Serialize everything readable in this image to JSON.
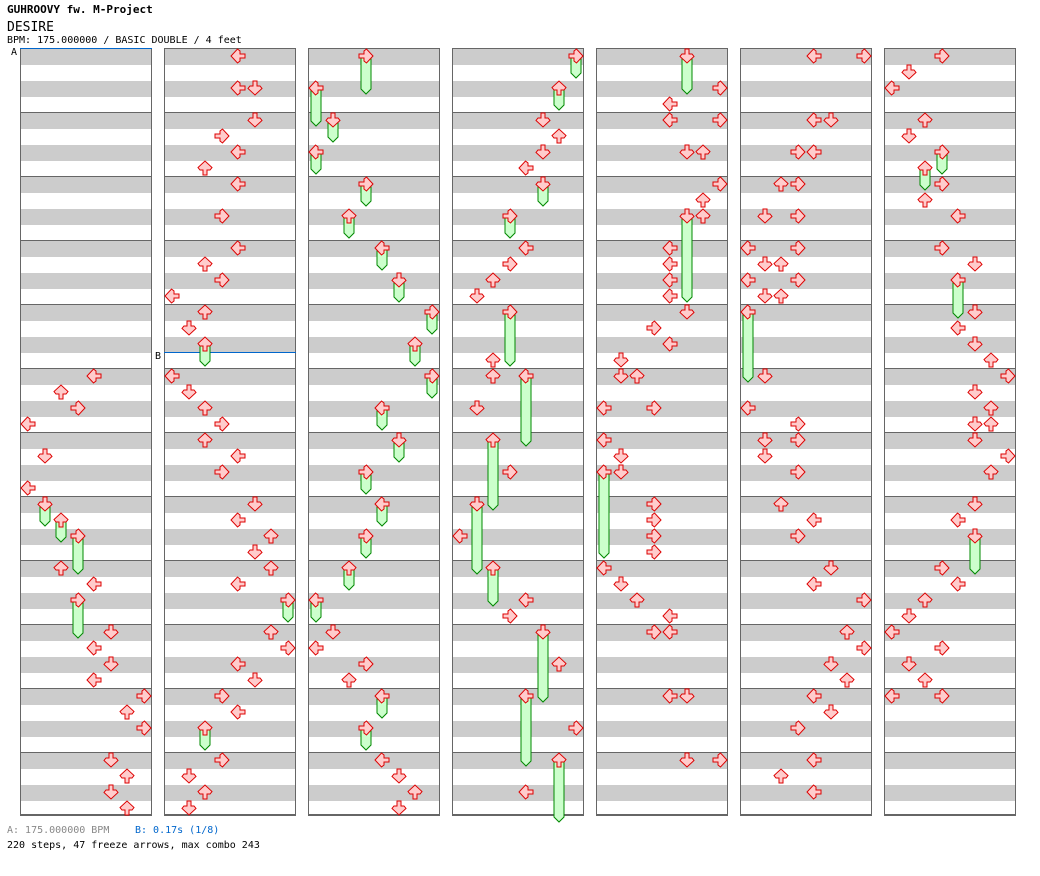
{
  "header": {
    "artist": "GUHROOVY fw. M-Project",
    "title": "DESIRE",
    "info": "BPM: 175.000000 / BASIC DOUBLE / 4 feet"
  },
  "footer": {
    "bpm_legend": "A: 175.000000 BPM",
    "stop_legend": "B: 0.17s (1/8)",
    "summary": "220 steps, 47 freeze arrows, max combo 243"
  },
  "chart": {
    "columns": 7,
    "measures_per_column": 12,
    "beats_per_measure": 4,
    "lane_directions": [
      "left",
      "down",
      "up",
      "right",
      "left",
      "down",
      "up",
      "right"
    ],
    "markers": [
      {
        "label": "A",
        "measure": 0,
        "beat": 0
      },
      {
        "label": "B",
        "measure": 16,
        "beat": 3
      }
    ],
    "notes": [
      [
        5,
        0,
        4
      ],
      [
        5,
        1,
        2
      ],
      [
        5,
        2,
        3
      ],
      [
        5,
        3,
        0
      ],
      [
        6,
        1,
        1
      ],
      [
        6,
        3,
        0
      ],
      [
        8,
        0,
        2
      ],
      [
        8,
        1,
        4
      ],
      [
        9,
        0,
        5
      ],
      [
        9,
        1,
        4
      ],
      [
        9,
        2,
        5
      ],
      [
        9,
        3,
        4
      ],
      [
        10,
        0,
        7
      ],
      [
        10,
        1,
        6
      ],
      [
        10,
        2,
        7
      ],
      [
        11,
        0,
        5
      ],
      [
        11,
        1,
        6
      ],
      [
        11,
        2,
        5
      ],
      [
        11,
        3,
        6
      ],
      [
        12,
        0,
        4
      ],
      [
        12,
        2,
        4
      ],
      [
        12,
        2,
        5
      ],
      [
        13,
        0,
        5
      ],
      [
        13,
        1,
        3
      ],
      [
        13,
        2,
        4
      ],
      [
        13,
        3,
        2
      ],
      [
        14,
        0,
        4
      ],
      [
        14,
        2,
        3
      ],
      [
        15,
        0,
        4
      ],
      [
        15,
        1,
        2
      ],
      [
        15,
        2,
        3
      ],
      [
        15,
        3,
        0
      ],
      [
        16,
        0,
        2
      ],
      [
        16,
        1,
        1
      ],
      [
        17,
        0,
        0
      ],
      [
        17,
        1,
        1
      ],
      [
        17,
        2,
        2
      ],
      [
        17,
        3,
        3
      ],
      [
        18,
        0,
        2
      ],
      [
        18,
        1,
        4
      ],
      [
        18,
        2,
        3
      ],
      [
        19,
        0,
        5
      ],
      [
        19,
        1,
        4
      ],
      [
        19,
        2,
        6
      ],
      [
        19,
        3,
        5
      ],
      [
        20,
        0,
        6
      ],
      [
        20,
        1,
        4
      ],
      [
        21,
        0,
        6
      ],
      [
        21,
        1,
        7
      ],
      [
        21,
        2,
        4
      ],
      [
        21,
        3,
        5
      ],
      [
        22,
        0,
        3
      ],
      [
        22,
        1,
        4
      ],
      [
        23,
        0,
        3
      ],
      [
        23,
        1,
        1
      ],
      [
        23,
        2,
        2
      ],
      [
        23,
        3,
        1
      ],
      [
        33,
        0,
        1
      ],
      [
        33,
        1,
        0
      ],
      [
        33,
        2,
        3
      ],
      [
        33,
        3,
        2
      ],
      [
        35,
        0,
        4
      ],
      [
        35,
        1,
        5
      ],
      [
        35,
        2,
        6
      ],
      [
        35,
        3,
        5
      ],
      [
        37,
        0,
        5
      ],
      [
        37,
        1,
        6
      ],
      [
        37,
        2,
        5
      ],
      [
        37,
        3,
        4
      ],
      [
        39,
        0,
        4
      ],
      [
        39,
        1,
        3
      ],
      [
        39,
        2,
        2
      ],
      [
        39,
        3,
        1
      ],
      [
        40,
        3,
        2
      ],
      [
        41,
        0,
        2
      ],
      [
        41,
        2,
        1
      ],
      [
        42,
        2,
        3
      ],
      [
        43,
        2,
        0
      ],
      [
        44,
        2,
        4
      ],
      [
        44,
        3,
        3
      ],
      [
        45,
        2,
        6
      ],
      [
        46,
        2,
        7
      ],
      [
        47,
        2,
        4
      ],
      [
        48,
        2,
        7
      ],
      [
        48,
        3,
        4
      ],
      [
        49,
        0,
        4
      ],
      [
        49,
        0,
        7
      ],
      [
        49,
        2,
        5
      ],
      [
        49,
        2,
        6
      ],
      [
        50,
        0,
        7
      ],
      [
        50,
        1,
        6
      ],
      [
        50,
        2,
        6
      ],
      [
        51,
        0,
        4
      ],
      [
        51,
        1,
        4
      ],
      [
        51,
        2,
        4
      ],
      [
        51,
        3,
        4
      ],
      [
        52,
        0,
        5
      ],
      [
        52,
        1,
        3
      ],
      [
        52,
        2,
        4
      ],
      [
        52,
        3,
        1
      ],
      [
        53,
        0,
        1
      ],
      [
        53,
        0,
        2
      ],
      [
        53,
        2,
        0
      ],
      [
        53,
        2,
        3
      ],
      [
        54,
        0,
        0
      ],
      [
        54,
        1,
        1
      ],
      [
        54,
        2,
        1
      ],
      [
        55,
        0,
        3
      ],
      [
        55,
        1,
        3
      ],
      [
        55,
        2,
        3
      ],
      [
        55,
        3,
        3
      ],
      [
        56,
        0,
        0
      ],
      [
        56,
        1,
        1
      ],
      [
        56,
        2,
        2
      ],
      [
        56,
        3,
        4
      ],
      [
        57,
        0,
        3
      ],
      [
        57,
        0,
        4
      ],
      [
        58,
        0,
        4
      ],
      [
        58,
        0,
        5
      ],
      [
        59,
        0,
        5
      ],
      [
        59,
        0,
        7
      ],
      [
        60,
        0,
        4
      ],
      [
        60,
        0,
        7
      ],
      [
        61,
        0,
        4
      ],
      [
        61,
        0,
        5
      ],
      [
        61,
        2,
        3
      ],
      [
        61,
        2,
        4
      ],
      [
        62,
        0,
        2
      ],
      [
        62,
        0,
        3
      ],
      [
        62,
        2,
        1
      ],
      [
        62,
        2,
        3
      ],
      [
        63,
        0,
        0
      ],
      [
        63,
        0,
        3
      ],
      [
        63,
        1,
        1
      ],
      [
        63,
        1,
        2
      ],
      [
        63,
        2,
        0
      ],
      [
        63,
        2,
        3
      ],
      [
        63,
        3,
        1
      ],
      [
        63,
        3,
        2
      ],
      [
        65,
        0,
        1
      ],
      [
        65,
        2,
        0
      ],
      [
        65,
        3,
        3
      ],
      [
        66,
        0,
        1
      ],
      [
        66,
        0,
        3
      ],
      [
        66,
        1,
        1
      ],
      [
        66,
        2,
        3
      ],
      [
        67,
        0,
        2
      ],
      [
        67,
        1,
        4
      ],
      [
        67,
        2,
        3
      ],
      [
        68,
        0,
        5
      ],
      [
        68,
        1,
        4
      ],
      [
        68,
        2,
        7
      ],
      [
        69,
        0,
        6
      ],
      [
        69,
        1,
        7
      ],
      [
        69,
        2,
        5
      ],
      [
        69,
        3,
        6
      ],
      [
        70,
        0,
        4
      ],
      [
        70,
        1,
        5
      ],
      [
        70,
        2,
        3
      ],
      [
        71,
        0,
        4
      ],
      [
        71,
        1,
        2
      ],
      [
        71,
        2,
        4
      ],
      [
        72,
        0,
        3
      ],
      [
        72,
        1,
        1
      ],
      [
        72,
        2,
        0
      ],
      [
        73,
        0,
        2
      ],
      [
        73,
        1,
        1
      ],
      [
        74,
        0,
        3
      ],
      [
        74,
        1,
        2
      ],
      [
        74,
        2,
        4
      ],
      [
        75,
        0,
        3
      ],
      [
        75,
        1,
        5
      ],
      [
        76,
        0,
        5
      ],
      [
        76,
        1,
        4
      ],
      [
        76,
        2,
        5
      ],
      [
        76,
        3,
        6
      ],
      [
        77,
        0,
        7
      ],
      [
        77,
        1,
        5
      ],
      [
        77,
        2,
        6
      ],
      [
        77,
        3,
        5
      ],
      [
        77,
        3,
        6
      ],
      [
        78,
        0,
        5
      ],
      [
        78,
        1,
        7
      ],
      [
        78,
        2,
        6
      ],
      [
        79,
        0,
        5
      ],
      [
        79,
        1,
        4
      ],
      [
        80,
        0,
        3
      ],
      [
        80,
        1,
        4
      ],
      [
        80,
        2,
        2
      ],
      [
        80,
        3,
        1
      ],
      [
        81,
        0,
        0
      ],
      [
        81,
        1,
        3
      ],
      [
        81,
        2,
        1
      ],
      [
        81,
        3,
        2
      ],
      [
        82,
        0,
        0
      ],
      [
        82,
        0,
        3
      ]
    ],
    "freezes": [
      [
        7,
        0,
        1,
        1
      ],
      [
        7,
        1,
        2,
        1
      ],
      [
        7,
        2,
        3,
        2
      ],
      [
        8,
        2,
        3,
        2
      ],
      [
        16,
        2,
        2,
        1
      ],
      [
        20,
        2,
        7,
        1
      ],
      [
        22,
        2,
        2,
        1
      ],
      [
        24,
        0,
        3,
        2
      ],
      [
        24,
        2,
        0,
        2
      ],
      [
        25,
        0,
        1,
        1
      ],
      [
        25,
        2,
        0,
        1
      ],
      [
        26,
        0,
        3,
        1
      ],
      [
        26,
        2,
        2,
        1
      ],
      [
        27,
        0,
        4,
        1
      ],
      [
        27,
        2,
        5,
        1
      ],
      [
        28,
        0,
        7,
        1
      ],
      [
        28,
        2,
        6,
        1
      ],
      [
        29,
        0,
        7,
        1
      ],
      [
        29,
        2,
        4,
        1
      ],
      [
        30,
        0,
        5,
        1
      ],
      [
        30,
        2,
        3,
        1
      ],
      [
        31,
        0,
        4,
        1
      ],
      [
        31,
        2,
        3,
        1
      ],
      [
        32,
        0,
        2,
        1
      ],
      [
        32,
        2,
        0,
        1
      ],
      [
        34,
        0,
        4,
        1
      ],
      [
        34,
        2,
        3,
        1
      ],
      [
        36,
        0,
        7,
        1
      ],
      [
        36,
        2,
        6,
        1
      ],
      [
        38,
        0,
        5,
        1
      ],
      [
        38,
        2,
        3,
        1
      ],
      [
        40,
        0,
        3,
        3
      ],
      [
        41,
        0,
        4,
        4
      ],
      [
        42,
        0,
        2,
        4
      ],
      [
        43,
        0,
        1,
        4
      ],
      [
        44,
        0,
        2,
        2
      ],
      [
        45,
        0,
        5,
        4
      ],
      [
        46,
        0,
        4,
        4
      ],
      [
        47,
        0,
        6,
        3.5
      ],
      [
        48,
        0,
        5,
        2
      ],
      [
        50,
        2,
        5,
        5
      ],
      [
        54,
        2,
        0,
        5
      ],
      [
        64,
        0,
        0,
        4
      ],
      [
        73,
        2,
        3,
        1
      ],
      [
        73,
        3,
        2,
        1
      ],
      [
        75,
        2,
        4,
        2
      ],
      [
        79,
        2,
        5,
        2
      ]
    ],
    "colors": {
      "arrow_fill": "#ffcccc",
      "arrow_stroke": "#dd0000",
      "freeze_fill": "#ccffcc",
      "freeze_stroke": "#008800",
      "marker": "#0066cc",
      "band": "#cccccc"
    }
  }
}
